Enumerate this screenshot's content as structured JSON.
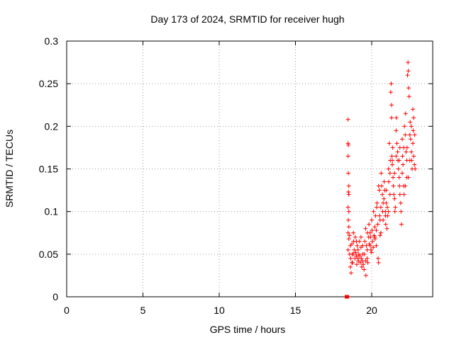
{
  "chart_data": {
    "type": "scatter",
    "title": "Day 173 of 2024, SRMTID for receiver hugh",
    "xlabel": "GPS time / hours",
    "ylabel": "SRMTID / TECUs",
    "xlim": [
      0,
      24
    ],
    "ylim": [
      0,
      0.3
    ],
    "grid": true,
    "marker": "+",
    "colors": {
      "points": "#ff0000",
      "grid": "#a0a0a0",
      "axis": "#000000"
    },
    "x_ticks": [
      {
        "value": 0,
        "label": "0"
      },
      {
        "value": 5,
        "label": "5"
      },
      {
        "value": 10,
        "label": "10"
      },
      {
        "value": 15,
        "label": "15"
      },
      {
        "value": 20,
        "label": "20"
      }
    ],
    "y_ticks": [
      {
        "value": 0,
        "label": "0"
      },
      {
        "value": 0.05,
        "label": "0.05"
      },
      {
        "value": 0.1,
        "label": "0.1"
      },
      {
        "value": 0.15,
        "label": "0.15"
      },
      {
        "value": 0.2,
        "label": "0.2"
      },
      {
        "value": 0.25,
        "label": "0.25"
      },
      {
        "value": 0.3,
        "label": "0.3"
      }
    ],
    "series": [
      {
        "name": "SRMTID",
        "points": [
          [
            18.35,
            0.0
          ],
          [
            18.4,
            0.0
          ],
          [
            18.45,
            0.208
          ],
          [
            18.45,
            0.18
          ],
          [
            18.47,
            0.178
          ],
          [
            18.45,
            0.165
          ],
          [
            18.47,
            0.145
          ],
          [
            18.5,
            0.13
          ],
          [
            18.47,
            0.123
          ],
          [
            18.5,
            0.12
          ],
          [
            18.45,
            0.105
          ],
          [
            18.5,
            0.1
          ],
          [
            18.47,
            0.09
          ],
          [
            18.5,
            0.082
          ],
          [
            18.45,
            0.075
          ],
          [
            18.5,
            0.068
          ],
          [
            18.45,
            0.055
          ],
          [
            18.55,
            0.072
          ],
          [
            18.6,
            0.06
          ],
          [
            18.62,
            0.045
          ],
          [
            18.6,
            0.035
          ],
          [
            18.65,
            0.028
          ],
          [
            18.7,
            0.062
          ],
          [
            18.72,
            0.05
          ],
          [
            18.75,
            0.04
          ],
          [
            18.8,
            0.075
          ],
          [
            18.82,
            0.065
          ],
          [
            18.85,
            0.055
          ],
          [
            18.9,
            0.045
          ],
          [
            18.92,
            0.07
          ],
          [
            18.95,
            0.052
          ],
          [
            19.0,
            0.048
          ],
          [
            19.02,
            0.038
          ],
          [
            19.05,
            0.06
          ],
          [
            19.1,
            0.055
          ],
          [
            19.12,
            0.042
          ],
          [
            19.15,
            0.05
          ],
          [
            19.2,
            0.065
          ],
          [
            19.22,
            0.048
          ],
          [
            19.25,
            0.04
          ],
          [
            19.3,
            0.058
          ],
          [
            19.32,
            0.045
          ],
          [
            19.35,
            0.035
          ],
          [
            19.4,
            0.06
          ],
          [
            19.42,
            0.05
          ],
          [
            19.45,
            0.038
          ],
          [
            19.5,
            0.032
          ],
          [
            19.52,
            0.05
          ],
          [
            19.55,
            0.065
          ],
          [
            19.6,
            0.042
          ],
          [
            19.62,
            0.025
          ],
          [
            19.65,
            0.06
          ],
          [
            19.7,
            0.055
          ],
          [
            19.72,
            0.075
          ],
          [
            19.75,
            0.04
          ],
          [
            19.8,
            0.07
          ],
          [
            19.82,
            0.085
          ],
          [
            19.85,
            0.062
          ],
          [
            19.9,
            0.06
          ],
          [
            19.92,
            0.07
          ],
          [
            19.95,
            0.055
          ],
          [
            20.0,
            0.09
          ],
          [
            20.02,
            0.078
          ],
          [
            20.05,
            0.065
          ],
          [
            20.1,
            0.058
          ],
          [
            20.12,
            0.1
          ],
          [
            20.15,
            0.072
          ],
          [
            20.2,
            0.082
          ],
          [
            20.22,
            0.068
          ],
          [
            20.25,
            0.095
          ],
          [
            20.3,
            0.078
          ],
          [
            20.32,
            0.105
          ],
          [
            20.35,
            0.11
          ],
          [
            20.4,
            0.085
          ],
          [
            20.42,
            0.045
          ],
          [
            20.45,
            0.04
          ],
          [
            20.45,
            0.13
          ],
          [
            20.5,
            0.125
          ],
          [
            20.52,
            0.095
          ],
          [
            20.55,
            0.072
          ],
          [
            20.6,
            0.105
          ],
          [
            20.62,
            0.145
          ],
          [
            20.65,
            0.13
          ],
          [
            20.7,
            0.12
          ],
          [
            20.72,
            0.1
          ],
          [
            20.75,
            0.09
          ],
          [
            20.8,
            0.115
          ],
          [
            20.82,
            0.135
          ],
          [
            20.85,
            0.125
          ],
          [
            20.9,
            0.1
          ],
          [
            20.92,
            0.085
          ],
          [
            20.95,
            0.11
          ],
          [
            21.0,
            0.08
          ],
          [
            21.02,
            0.105
          ],
          [
            21.05,
            0.095
          ],
          [
            21.1,
            0.15
          ],
          [
            21.12,
            0.135
          ],
          [
            21.15,
            0.18
          ],
          [
            21.2,
            0.145
          ],
          [
            21.22,
            0.16
          ],
          [
            21.25,
            0.24
          ],
          [
            21.28,
            0.25
          ],
          [
            21.3,
            0.225
          ],
          [
            21.3,
            0.21
          ],
          [
            21.32,
            0.165
          ],
          [
            21.35,
            0.155
          ],
          [
            21.38,
            0.175
          ],
          [
            21.4,
            0.14
          ],
          [
            21.42,
            0.13
          ],
          [
            21.45,
            0.12
          ],
          [
            21.5,
            0.115
          ],
          [
            21.52,
            0.1
          ],
          [
            21.55,
            0.105
          ],
          [
            21.6,
            0.195
          ],
          [
            21.62,
            0.21
          ],
          [
            21.65,
            0.18
          ],
          [
            21.7,
            0.17
          ],
          [
            21.72,
            0.16
          ],
          [
            21.75,
            0.15
          ],
          [
            21.8,
            0.14
          ],
          [
            21.82,
            0.13
          ],
          [
            21.85,
            0.12
          ],
          [
            21.9,
            0.11
          ],
          [
            21.92,
            0.1
          ],
          [
            21.95,
            0.085
          ],
          [
            22.0,
            0.145
          ],
          [
            22.02,
            0.165
          ],
          [
            22.05,
            0.155
          ],
          [
            22.1,
            0.13
          ],
          [
            22.12,
            0.12
          ],
          [
            22.15,
            0.2
          ],
          [
            22.2,
            0.19
          ],
          [
            22.22,
            0.215
          ],
          [
            22.25,
            0.17
          ],
          [
            22.3,
            0.16
          ],
          [
            22.32,
            0.175
          ],
          [
            22.35,
            0.26
          ],
          [
            22.38,
            0.275
          ],
          [
            22.4,
            0.265
          ],
          [
            22.42,
            0.245
          ],
          [
            22.45,
            0.235
          ],
          [
            22.5,
            0.19
          ],
          [
            22.52,
            0.205
          ],
          [
            22.55,
            0.185
          ],
          [
            22.6,
            0.17
          ],
          [
            22.62,
            0.16
          ],
          [
            22.65,
            0.15
          ],
          [
            22.7,
            0.22
          ],
          [
            22.72,
            0.195
          ],
          [
            22.75,
            0.165
          ],
          [
            22.8,
            0.155
          ],
          [
            22.85,
            0.15
          ],
          [
            18.55,
            0.05
          ],
          [
            18.7,
            0.04
          ],
          [
            19.0,
            0.065
          ],
          [
            19.3,
            0.07
          ],
          [
            19.6,
            0.08
          ],
          [
            19.9,
            0.075
          ],
          [
            20.2,
            0.07
          ],
          [
            20.55,
            0.09
          ],
          [
            20.75,
            0.11
          ],
          [
            20.95,
            0.125
          ],
          [
            21.1,
            0.1
          ],
          [
            21.35,
            0.16
          ],
          [
            21.6,
            0.165
          ],
          [
            21.85,
            0.175
          ],
          [
            22.0,
            0.185
          ],
          [
            22.2,
            0.13
          ],
          [
            22.4,
            0.14
          ],
          [
            22.6,
            0.2
          ],
          [
            22.75,
            0.21
          ],
          [
            18.8,
            0.05
          ],
          [
            19.1,
            0.045
          ],
          [
            19.4,
            0.042
          ],
          [
            19.7,
            0.045
          ],
          [
            20.0,
            0.052
          ],
          [
            20.3,
            0.06
          ],
          [
            20.6,
            0.075
          ],
          [
            20.9,
            0.095
          ],
          [
            21.2,
            0.12
          ],
          [
            21.5,
            0.145
          ],
          [
            21.8,
            0.16
          ],
          [
            22.1,
            0.175
          ],
          [
            22.3,
            0.14
          ],
          [
            22.5,
            0.16
          ],
          [
            22.7,
            0.18
          ],
          [
            22.82,
            0.19
          ]
        ]
      }
    ]
  }
}
